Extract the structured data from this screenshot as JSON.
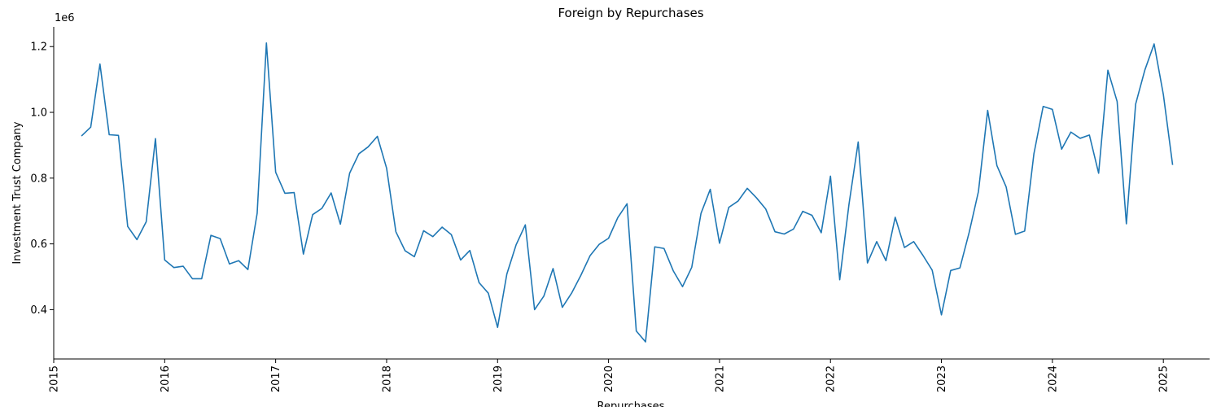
{
  "chart_data": {
    "type": "line",
    "title": "Foreign by Repurchases",
    "xlabel": "Repurchases",
    "ylabel": "Investment Trust Company",
    "y_offset_label": "1e6",
    "xlim": [
      "2015-01-01",
      "2025-06-01"
    ],
    "ylim": [
      250000,
      1260000
    ],
    "x_ticks": [
      "2015",
      "2016",
      "2017",
      "2018",
      "2019",
      "2020",
      "2021",
      "2022",
      "2023",
      "2024",
      "2025"
    ],
    "y_ticks": [
      "0.4",
      "0.6",
      "0.8",
      "1.0",
      "1.2"
    ],
    "y_tick_values": [
      400000,
      600000,
      800000,
      1000000,
      1200000
    ],
    "grid": false,
    "color": "#1f77b4",
    "series": [
      {
        "x": [
          "2015-04",
          "2015-05",
          "2015-06",
          "2015-07",
          "2015-08",
          "2015-09",
          "2015-10",
          "2015-11",
          "2015-12",
          "2016-01",
          "2016-02",
          "2016-03",
          "2016-04",
          "2016-05",
          "2016-06",
          "2016-07",
          "2016-08",
          "2016-09",
          "2016-10",
          "2016-11",
          "2016-12",
          "2017-01",
          "2017-02",
          "2017-03",
          "2017-04",
          "2017-05",
          "2017-06",
          "2017-07",
          "2017-08",
          "2017-09",
          "2017-10",
          "2017-11",
          "2017-12",
          "2018-01",
          "2018-02",
          "2018-03",
          "2018-04",
          "2018-05",
          "2018-06",
          "2018-07",
          "2018-08",
          "2018-09",
          "2018-10",
          "2018-11",
          "2018-12",
          "2019-01",
          "2019-02",
          "2019-03",
          "2019-04",
          "2019-05",
          "2019-06",
          "2019-07",
          "2019-08",
          "2019-09",
          "2019-10",
          "2019-11",
          "2019-12",
          "2020-01",
          "2020-02",
          "2020-03",
          "2020-04",
          "2020-05",
          "2020-06",
          "2020-07",
          "2020-08",
          "2020-09",
          "2020-10",
          "2020-11",
          "2020-12",
          "2021-01",
          "2021-02",
          "2021-03",
          "2021-04",
          "2021-05",
          "2021-06",
          "2021-07",
          "2021-08",
          "2021-09",
          "2021-10",
          "2021-11",
          "2021-12",
          "2022-01",
          "2022-02",
          "2022-03",
          "2022-04",
          "2022-05",
          "2022-06",
          "2022-07",
          "2022-08",
          "2022-09",
          "2022-10",
          "2022-11",
          "2022-12",
          "2023-01",
          "2023-02",
          "2023-03",
          "2023-04",
          "2023-05",
          "2023-06",
          "2023-07",
          "2023-08",
          "2023-09",
          "2023-10",
          "2023-11",
          "2023-12",
          "2024-01",
          "2024-02",
          "2024-03",
          "2024-04",
          "2024-05",
          "2024-06",
          "2024-07",
          "2024-08",
          "2024-09",
          "2024-10",
          "2024-11",
          "2024-12",
          "2025-01",
          "2025-02"
        ],
        "y": [
          928000,
          955000,
          1147000,
          932000,
          930000,
          653000,
          613000,
          667000,
          920000,
          551000,
          528000,
          532000,
          494000,
          494000,
          626000,
          616000,
          539000,
          549000,
          522000,
          693000,
          1211000,
          818000,
          754000,
          756000,
          569000,
          689000,
          708000,
          755000,
          660000,
          815000,
          874000,
          895000,
          927000,
          830000,
          637000,
          579000,
          561000,
          640000,
          622000,
          651000,
          628000,
          551000,
          580000,
          482000,
          450000,
          346000,
          508000,
          597000,
          658000,
          400000,
          441000,
          525000,
          407000,
          450000,
          504000,
          564000,
          599000,
          617000,
          680000,
          722000,
          335000,
          302000,
          591000,
          586000,
          518000,
          470000,
          529000,
          693000,
          766000,
          602000,
          711000,
          730000,
          769000,
          740000,
          706000,
          637000,
          630000,
          645000,
          699000,
          687000,
          634000,
          806000,
          491000,
          720000,
          910000,
          542000,
          607000,
          549000,
          681000,
          589000,
          607000,
          565000,
          520000,
          384000,
          519000,
          527000,
          635000,
          759000,
          1006000,
          838000,
          773000,
          629000,
          639000,
          874000,
          1018000,
          1009000,
          888000,
          940000,
          921000,
          931000,
          815000,
          1128000,
          1033000,
          661000,
          1025000,
          1129000,
          1208000,
          1054000,
          840000
        ]
      }
    ]
  }
}
